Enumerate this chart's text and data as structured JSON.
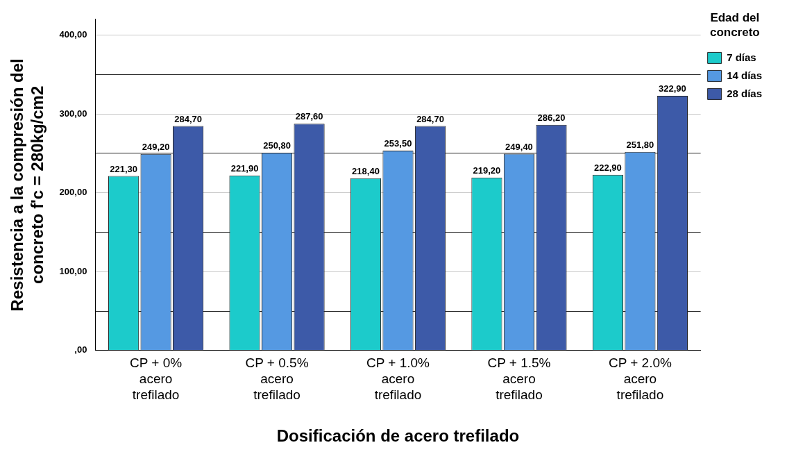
{
  "chart_data": {
    "type": "bar",
    "xlabel": "Dosificación de acero trefilado",
    "ylabel": "Resistencia a la compresión del concreto f'c = 280kg/cm2",
    "legend_title": "Edad del concreto",
    "legend": "top right",
    "grid": "y",
    "categories": [
      "CP + 0% acero trefilado",
      "CP + 0.5% acero trefilado",
      "CP + 1.0% acero trefilado",
      "CP + 1.5% acero trefilado",
      "CP + 2.0% acero trefilado"
    ],
    "ylim": [
      0,
      420
    ],
    "yticks": [
      {
        "value": 0,
        "label": ",00"
      },
      {
        "value": 50,
        "label": null
      },
      {
        "value": 100,
        "label": "100,00"
      },
      {
        "value": 150,
        "label": null
      },
      {
        "value": 200,
        "label": "200,00"
      },
      {
        "value": 250,
        "label": null
      },
      {
        "value": 300,
        "label": "300,00"
      },
      {
        "value": 350,
        "label": null
      },
      {
        "value": 400,
        "label": "400,00"
      }
    ],
    "series": [
      {
        "name": "7 días",
        "color": "#1ccbcb",
        "values": [
          221.3,
          221.9,
          218.4,
          219.2,
          222.9
        ],
        "value_labels": [
          "221,30",
          "221,90",
          "218,40",
          "219,20",
          "222,90"
        ]
      },
      {
        "name": "14 días",
        "color": "#5599e2",
        "values": [
          249.2,
          250.8,
          253.5,
          249.4,
          251.8
        ],
        "value_labels": [
          "249,20",
          "250,80",
          "253,50",
          "249,40",
          "251,80"
        ]
      },
      {
        "name": "28 días",
        "color": "#3d5aa8",
        "values": [
          284.7,
          287.6,
          284.7,
          286.2,
          322.9
        ],
        "value_labels": [
          "284,70",
          "287,60",
          "284,70",
          "286,20",
          "322,90"
        ]
      }
    ]
  }
}
